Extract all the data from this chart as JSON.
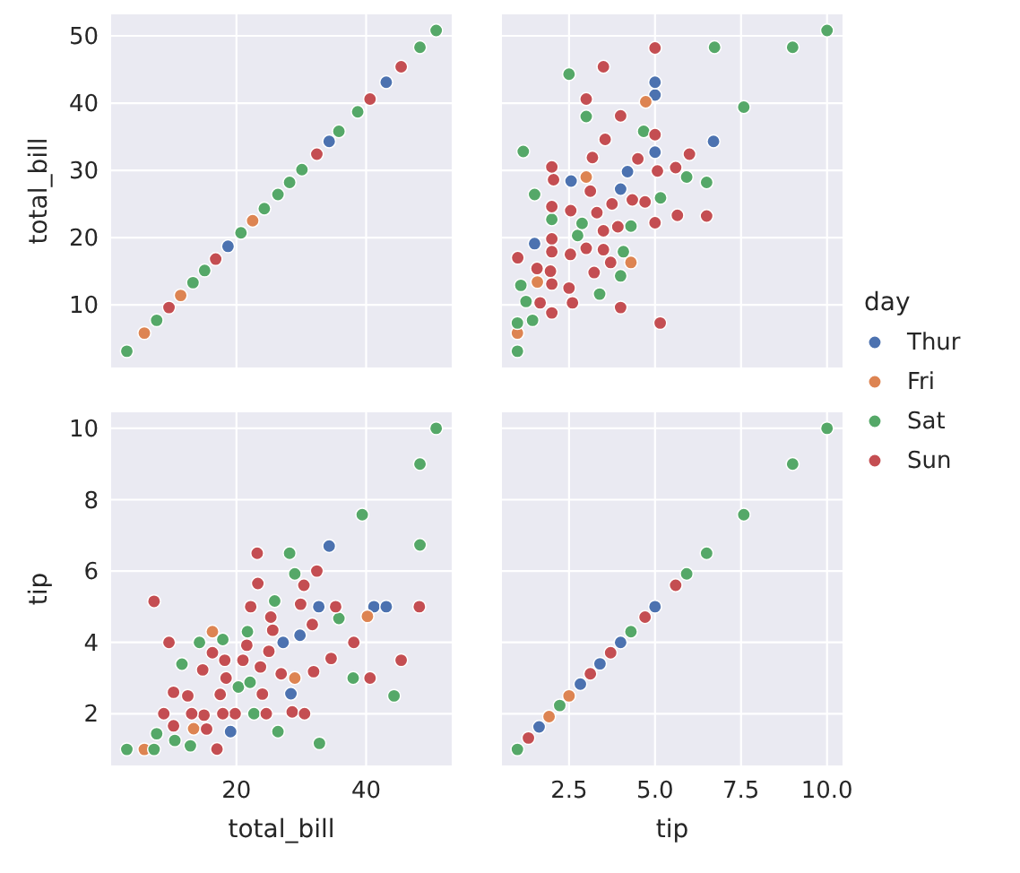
{
  "chart_data": [
    {
      "type": "scatter",
      "ylabel": "total_bill",
      "tick_labels": "y",
      "grid": true,
      "marker": "circle",
      "xlim": [
        0.68,
        53.2
      ],
      "ylim": [
        0.68,
        53.2
      ],
      "xticks": [
        20,
        40
      ],
      "yticks": [
        10,
        20,
        30,
        40,
        50
      ],
      "series": [
        {
          "color": "#4c72b0",
          "x": [
            18.7,
            34.3,
            43.1
          ],
          "values": [
            18.7,
            34.3,
            43.1
          ]
        },
        {
          "color": "#dd8452",
          "x": [
            5.8,
            11.4,
            22.5
          ],
          "values": [
            5.8,
            11.4,
            22.5
          ]
        },
        {
          "color": "#55a868",
          "x": [
            3.1,
            7.7,
            13.3,
            15.1,
            20.7,
            24.3,
            26.4,
            28.2,
            30.1,
            35.8,
            38.7,
            48.3,
            50.8
          ],
          "values": [
            3.1,
            7.7,
            13.3,
            15.1,
            20.7,
            24.3,
            26.4,
            28.2,
            30.1,
            35.8,
            38.7,
            48.3,
            50.8
          ]
        },
        {
          "color": "#c44e52",
          "x": [
            9.6,
            16.8,
            32.4,
            40.6,
            45.4
          ],
          "values": [
            9.6,
            16.8,
            32.4,
            40.6,
            45.4
          ]
        }
      ]
    },
    {
      "type": "scatter",
      "tick_labels": false,
      "grid": true,
      "marker": "circle",
      "legend": "right",
      "legend_title": "day",
      "xlim": [
        0.55,
        10.45
      ],
      "ylim": [
        0.68,
        53.2
      ],
      "xticks": [
        2.5,
        5,
        7.5,
        10
      ],
      "yticks": [
        10,
        20,
        30,
        40,
        50
      ],
      "series": [
        {
          "name": "Thur",
          "color": "#4c72b0",
          "x": [
            4.0,
            5.0,
            4.2,
            1.5,
            6.7,
            5.0,
            2.56,
            5.0
          ],
          "values": [
            27.2,
            32.7,
            29.8,
            19.1,
            34.3,
            41.2,
            28.4,
            43.1
          ]
        },
        {
          "name": "Fri",
          "color": "#dd8452",
          "x": [
            3.0,
            1.0,
            4.3,
            4.73,
            1.58
          ],
          "values": [
            29.0,
            5.8,
            16.3,
            40.2,
            13.4
          ]
        },
        {
          "name": "Sat",
          "color": "#55a868",
          "x": [
            4.08,
            2.75,
            7.58,
            4.3,
            3.0,
            1.5,
            6.73,
            1.0,
            1.25,
            2.5,
            4.0,
            1.0,
            10.0,
            5.16,
            9.0,
            6.5,
            1.1,
            1.44,
            2.88,
            3.39,
            1.17,
            4.67,
            5.92,
            2.0
          ],
          "values": [
            17.9,
            20.3,
            39.4,
            21.7,
            38.0,
            26.4,
            48.3,
            3.1,
            10.5,
            44.3,
            14.3,
            7.3,
            50.8,
            25.9,
            48.3,
            28.2,
            12.9,
            7.7,
            22.1,
            11.6,
            32.8,
            35.8,
            29.0,
            22.7
          ]
        },
        {
          "name": "Sun",
          "color": "#c44e52",
          "x": [
            1.01,
            1.66,
            3.5,
            3.31,
            4.71,
            2.0,
            3.12,
            1.96,
            3.23,
            5.0,
            1.57,
            3.0,
            3.92,
            3.71,
            2.54,
            5.6,
            5.0,
            6.0,
            2.05,
            2.5,
            2.6,
            4.34,
            4.0,
            2.55,
            5.07,
            2.0,
            2.0,
            2.0,
            5.0,
            3.75,
            4.5,
            5.15,
            3.18,
            2.0,
            4.0,
            3.55,
            5.65,
            3.5,
            6.5,
            3.0,
            2.0,
            3.5
          ],
          "values": [
            17.0,
            10.3,
            21.0,
            23.7,
            25.3,
            8.8,
            26.9,
            15.0,
            14.8,
            35.3,
            15.4,
            18.4,
            21.6,
            16.3,
            17.5,
            30.4,
            22.2,
            32.4,
            28.6,
            12.5,
            10.3,
            25.6,
            38.1,
            24.0,
            29.9,
            13.1,
            24.6,
            19.8,
            48.2,
            25.0,
            31.7,
            7.3,
            31.9,
            17.9,
            9.6,
            34.6,
            23.3,
            45.4,
            23.2,
            40.6,
            30.5,
            18.2
          ]
        }
      ]
    },
    {
      "type": "scatter",
      "xlabel": "total_bill",
      "ylabel": "tip",
      "grid": true,
      "marker": "circle",
      "xlim": [
        0.68,
        53.2
      ],
      "ylim": [
        0.55,
        10.45
      ],
      "xticks": [
        20,
        40
      ],
      "yticks": [
        2,
        4,
        6,
        8,
        10
      ],
      "series": [
        {
          "color": "#4c72b0",
          "x": [
            27.2,
            32.7,
            29.8,
            19.1,
            34.3,
            41.2,
            28.4,
            43.1
          ],
          "values": [
            4.0,
            5.0,
            4.2,
            1.5,
            6.7,
            5.0,
            2.56,
            5.0
          ]
        },
        {
          "color": "#dd8452",
          "x": [
            29.0,
            5.8,
            16.3,
            40.2,
            13.4
          ],
          "values": [
            3.0,
            1.0,
            4.3,
            4.73,
            1.58
          ]
        },
        {
          "color": "#55a868",
          "x": [
            17.9,
            20.3,
            39.4,
            21.7,
            38.0,
            26.4,
            48.3,
            3.1,
            10.5,
            44.3,
            14.3,
            7.3,
            50.8,
            25.9,
            48.3,
            28.2,
            12.9,
            7.7,
            22.1,
            11.6,
            32.8,
            35.8,
            29.0,
            22.7
          ],
          "values": [
            4.08,
            2.75,
            7.58,
            4.3,
            3.0,
            1.5,
            6.73,
            1.0,
            1.25,
            2.5,
            4.0,
            1.0,
            10.0,
            5.16,
            9.0,
            6.5,
            1.1,
            1.44,
            2.88,
            3.39,
            1.17,
            4.67,
            5.92,
            2.0
          ]
        },
        {
          "color": "#c44e52",
          "x": [
            17.0,
            10.3,
            21.0,
            23.7,
            25.3,
            8.8,
            26.9,
            15.0,
            14.8,
            35.3,
            15.4,
            18.4,
            21.6,
            16.3,
            17.5,
            30.4,
            22.2,
            32.4,
            28.6,
            12.5,
            10.3,
            25.6,
            38.1,
            24.0,
            29.9,
            13.1,
            24.6,
            19.8,
            48.2,
            25.0,
            31.7,
            7.3,
            31.9,
            17.9,
            9.6,
            34.6,
            23.3,
            45.4,
            23.2,
            40.6,
            30.5,
            18.2
          ],
          "values": [
            1.01,
            1.66,
            3.5,
            3.31,
            4.71,
            2.0,
            3.12,
            1.96,
            3.23,
            5.0,
            1.57,
            3.0,
            3.92,
            3.71,
            2.54,
            5.6,
            5.0,
            6.0,
            2.05,
            2.5,
            2.6,
            4.34,
            4.0,
            2.55,
            5.07,
            2.0,
            2.0,
            2.0,
            5.0,
            3.75,
            4.5,
            5.15,
            3.18,
            2.0,
            4.0,
            3.55,
            5.65,
            3.5,
            6.5,
            3.0,
            2.0,
            3.5
          ]
        }
      ]
    },
    {
      "type": "scatter",
      "xlabel": "tip",
      "tick_labels": "x",
      "grid": true,
      "marker": "circle",
      "xlim": [
        0.55,
        10.45
      ],
      "ylim": [
        0.55,
        10.45
      ],
      "xticks": [
        {
          "value": 2.5,
          "label": "2.5"
        },
        {
          "value": 5,
          "label": "5.0"
        },
        {
          "value": 7.5,
          "label": "7.5"
        },
        {
          "value": 10,
          "label": "10.0"
        }
      ],
      "yticks": [
        2,
        4,
        6,
        8,
        10
      ],
      "series": [
        {
          "color": "#4c72b0",
          "x": [
            1.63,
            2.83,
            3.4,
            4.0,
            5.0
          ],
          "values": [
            1.63,
            2.83,
            3.4,
            4.0,
            5.0
          ]
        },
        {
          "color": "#dd8452",
          "x": [
            1.92,
            2.5
          ],
          "values": [
            1.92,
            2.5
          ]
        },
        {
          "color": "#55a868",
          "x": [
            1.0,
            2.23,
            4.3,
            5.92,
            6.5,
            7.58,
            9.0,
            10.0
          ],
          "values": [
            1.0,
            2.23,
            4.3,
            5.92,
            6.5,
            7.58,
            9.0,
            10.0
          ]
        },
        {
          "color": "#c44e52",
          "x": [
            1.32,
            3.12,
            3.71,
            4.71,
            5.6
          ],
          "values": [
            1.32,
            3.12,
            3.71,
            4.71,
            5.6
          ]
        }
      ]
    }
  ]
}
